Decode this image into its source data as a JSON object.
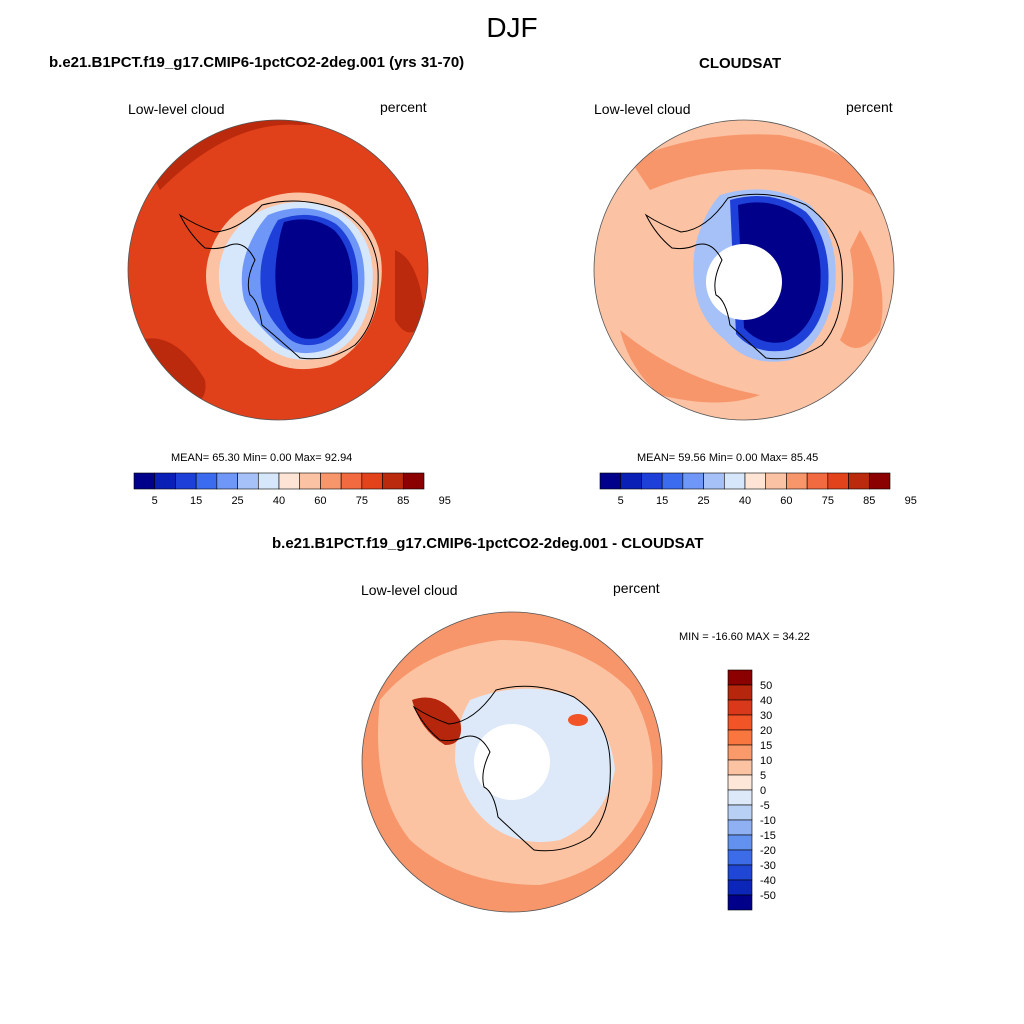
{
  "main_title": "DJF",
  "panels": [
    {
      "title": "b.e21.B1PCT.f19_g17.CMIP6-1pctCO2-2deg.001 (yrs 31-70)",
      "left_label": "Low-level cloud",
      "right_label": "percent",
      "stats": "MEAN=  65.30  Min=   0.00  Max=  92.94",
      "colorbar_ticks": [
        "5",
        "15",
        "25",
        "40",
        "60",
        "75",
        "85",
        "95"
      ]
    },
    {
      "title": "CLOUDSAT",
      "left_label": "Low-level cloud",
      "right_label": "percent",
      "stats": "MEAN=  59.56  Min=   0.00  Max=  85.45",
      "colorbar_ticks": [
        "5",
        "15",
        "25",
        "40",
        "60",
        "75",
        "85",
        "95"
      ]
    },
    {
      "title": "b.e21.B1PCT.f19_g17.CMIP6-1pctCO2-2deg.001 - CLOUDSAT",
      "left_label": "Low-level cloud",
      "right_label": "percent",
      "stats": "MIN = -16.60 MAX =  34.22",
      "colorbar_ticks": [
        "50",
        "40",
        "30",
        "20",
        "15",
        "10",
        "5",
        "0",
        "-5",
        "-10",
        "-15",
        "-20",
        "-30",
        "-40",
        "-50"
      ]
    }
  ],
  "colors": {
    "abs_scale": [
      "#00008b",
      "#0a1fb5",
      "#1e40d8",
      "#3b6cf0",
      "#6f97f7",
      "#a6c1f8",
      "#d6e6fb",
      "#fde4d4",
      "#fbc2a3",
      "#f8966b",
      "#f26a40",
      "#e3431b",
      "#bb2a0c",
      "#8b0000"
    ],
    "diff_scale": [
      "#8b0000",
      "#b5260c",
      "#d9381a",
      "#f05427",
      "#f9763f",
      "#fa9a6b",
      "#fcc3a2",
      "#fde7d9",
      "#dde9f8",
      "#b9d0f5",
      "#8fb1f3",
      "#6391f0",
      "#3d6ce8",
      "#2046d6",
      "#0b26b8",
      "#00008b"
    ],
    "ocean_model": "#e0401a",
    "ocean_model_dark": "#bb2a0c",
    "ocean_obs": "#fbc2a3",
    "ocean_obs_mid": "#f8966b",
    "ocean_diff": "#f8966b"
  }
}
